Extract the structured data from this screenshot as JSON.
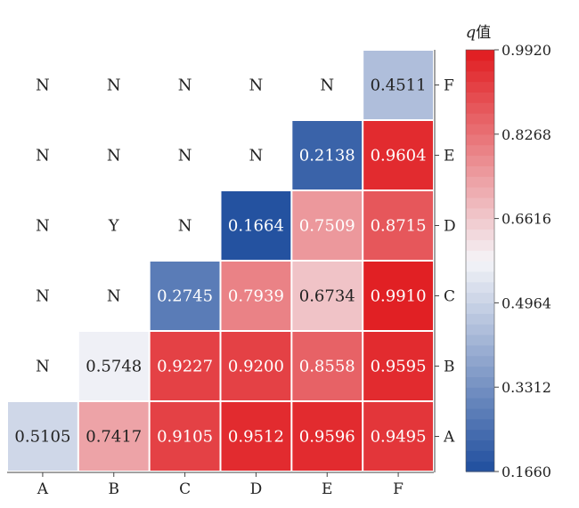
{
  "chart_data": {
    "type": "heatmap",
    "title": "",
    "xlabel": "",
    "ylabel": "",
    "x_categories": [
      "A",
      "B",
      "C",
      "D",
      "E",
      "F"
    ],
    "y_categories": [
      "A",
      "B",
      "C",
      "D",
      "E",
      "F"
    ],
    "cells": [
      {
        "x": "A",
        "y": "A",
        "value": 0.5105,
        "label": "0.5105"
      },
      {
        "x": "B",
        "y": "A",
        "value": 0.7417,
        "label": "0.7417"
      },
      {
        "x": "C",
        "y": "A",
        "value": 0.9105,
        "label": "0.9105"
      },
      {
        "x": "D",
        "y": "A",
        "value": 0.9512,
        "label": "0.9512"
      },
      {
        "x": "E",
        "y": "A",
        "value": 0.9596,
        "label": "0.9596"
      },
      {
        "x": "F",
        "y": "A",
        "value": 0.9495,
        "label": "0.9495"
      },
      {
        "x": "A",
        "y": "B",
        "value": null,
        "label": "N"
      },
      {
        "x": "B",
        "y": "B",
        "value": 0.5748,
        "label": "0.5748"
      },
      {
        "x": "C",
        "y": "B",
        "value": 0.9227,
        "label": "0.9227"
      },
      {
        "x": "D",
        "y": "B",
        "value": 0.92,
        "label": "0.9200"
      },
      {
        "x": "E",
        "y": "B",
        "value": 0.8558,
        "label": "0.8558"
      },
      {
        "x": "F",
        "y": "B",
        "value": 0.9595,
        "label": "0.9595"
      },
      {
        "x": "A",
        "y": "C",
        "value": null,
        "label": "N"
      },
      {
        "x": "B",
        "y": "C",
        "value": null,
        "label": "N"
      },
      {
        "x": "C",
        "y": "C",
        "value": 0.2745,
        "label": "0.2745"
      },
      {
        "x": "D",
        "y": "C",
        "value": 0.7939,
        "label": "0.7939"
      },
      {
        "x": "E",
        "y": "C",
        "value": 0.6734,
        "label": "0.6734"
      },
      {
        "x": "F",
        "y": "C",
        "value": 0.991,
        "label": "0.9910"
      },
      {
        "x": "A",
        "y": "D",
        "value": null,
        "label": "N"
      },
      {
        "x": "B",
        "y": "D",
        "value": null,
        "label": "Y"
      },
      {
        "x": "C",
        "y": "D",
        "value": null,
        "label": "N"
      },
      {
        "x": "D",
        "y": "D",
        "value": 0.1664,
        "label": "0.1664"
      },
      {
        "x": "E",
        "y": "D",
        "value": 0.7509,
        "label": "0.7509"
      },
      {
        "x": "F",
        "y": "D",
        "value": 0.8715,
        "label": "0.8715"
      },
      {
        "x": "A",
        "y": "E",
        "value": null,
        "label": "N"
      },
      {
        "x": "B",
        "y": "E",
        "value": null,
        "label": "N"
      },
      {
        "x": "C",
        "y": "E",
        "value": null,
        "label": "N"
      },
      {
        "x": "D",
        "y": "E",
        "value": null,
        "label": "N"
      },
      {
        "x": "E",
        "y": "E",
        "value": 0.2138,
        "label": "0.2138"
      },
      {
        "x": "F",
        "y": "E",
        "value": 0.9604,
        "label": "0.9604"
      },
      {
        "x": "A",
        "y": "F",
        "value": null,
        "label": "N"
      },
      {
        "x": "B",
        "y": "F",
        "value": null,
        "label": "N"
      },
      {
        "x": "C",
        "y": "F",
        "value": null,
        "label": "N"
      },
      {
        "x": "D",
        "y": "F",
        "value": null,
        "label": "N"
      },
      {
        "x": "E",
        "y": "F",
        "value": null,
        "label": "N"
      },
      {
        "x": "F",
        "y": "F",
        "value": 0.4511,
        "label": "0.4511"
      }
    ],
    "colorbar": {
      "title_italic": "q",
      "title_suffix": "值",
      "min": 0.166,
      "max": 0.992,
      "mid": 0.579,
      "tick_values": [
        0.166,
        0.3312,
        0.4964,
        0.6616,
        0.8268,
        0.992
      ],
      "tick_labels": [
        "0.1660",
        "0.3312",
        "0.4964",
        "0.6616",
        "0.8268",
        "0.9920"
      ],
      "steps": 40,
      "colors": {
        "low": "#1f4e9e",
        "mid": "#f4f4f8",
        "high": "#e01b1f"
      }
    },
    "grid": false,
    "legend_position": "right"
  }
}
